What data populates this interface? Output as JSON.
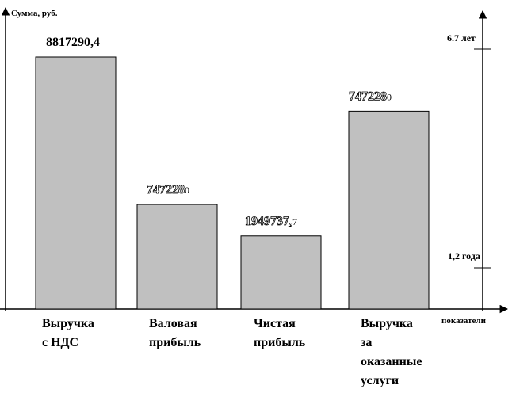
{
  "chart_data": {
    "type": "bar",
    "ylabel": "Сумма, руб.",
    "xlabel": "показатели",
    "categories": [
      [
        "Выручка",
        "с НДС"
      ],
      [
        "Валовая",
        "прибыль"
      ],
      [
        "Чистая",
        "прибыль"
      ],
      [
        "Выручка",
        "за",
        "оказанные",
        "услуги"
      ]
    ],
    "values": [
      8817290.4,
      7472280,
      1949737.7,
      7472280
    ],
    "value_labels": [
      {
        "main": "8817290,4",
        "tail": ""
      },
      {
        "main": "747228",
        "tail": "0"
      },
      {
        "main": "1949737,",
        "tail": "7"
      },
      {
        "main": "747228",
        "tail": "0"
      }
    ],
    "bar_heights_relative": [
      1.0,
      0.415,
      0.29,
      0.785
    ],
    "right_axis_labels": [
      "6.7 лет",
      "1,2 года"
    ],
    "grid": false,
    "colors": {
      "bar_fill": "#c0c0c0",
      "bar_stroke": "#000000",
      "axis": "#000000"
    }
  }
}
